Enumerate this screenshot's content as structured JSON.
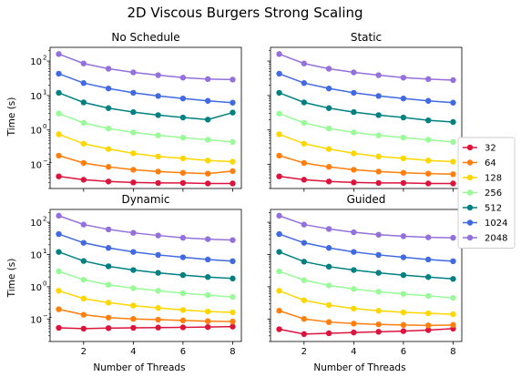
{
  "figure": {
    "title": "2D Viscous Burgers Strong Scaling"
  },
  "chart_data": {
    "type": "line",
    "x": [
      1,
      2,
      3,
      4,
      5,
      6,
      7,
      8
    ],
    "x_ticks": [
      2,
      4,
      6,
      8
    ],
    "x_tick_labels": [
      "2",
      "4",
      "6",
      "8"
    ],
    "xlabel": "Number of Threads",
    "ylabel": "Time (s)",
    "yscale": "log",
    "ylim": [
      0.02,
      250
    ],
    "y_ticks": [
      0.1,
      1,
      10,
      100
    ],
    "y_tick_labels": [
      "10",
      "10",
      "10",
      "10"
    ],
    "y_tick_exponents": [
      "−1",
      "0",
      "1",
      "2"
    ],
    "legend": {
      "placement": "right",
      "entries": [
        "32",
        "64",
        "128",
        "256",
        "512",
        "1024",
        "2048"
      ]
    },
    "series_colors": [
      "#dc143c",
      "#ff7f0e",
      "#ffd700",
      "#98fb98",
      "#008080",
      "#4169e1",
      "#9370db"
    ],
    "panels": [
      {
        "title": "No Schedule",
        "series": [
          {
            "name": "32",
            "values": [
              0.045,
              0.036,
              0.032,
              0.03,
              0.029,
              0.029,
              0.028,
              0.028
            ]
          },
          {
            "name": "64",
            "values": [
              0.18,
              0.11,
              0.085,
              0.07,
              0.062,
              0.057,
              0.054,
              0.064
            ]
          },
          {
            "name": "128",
            "values": [
              0.75,
              0.4,
              0.28,
              0.21,
              0.17,
              0.15,
              0.13,
              0.12
            ]
          },
          {
            "name": "256",
            "values": [
              3.0,
              1.6,
              1.1,
              0.85,
              0.7,
              0.6,
              0.52,
              0.45
            ]
          },
          {
            "name": "512",
            "values": [
              12,
              6.3,
              4.3,
              3.3,
              2.7,
              2.3,
              2.0,
              3.2
            ]
          },
          {
            "name": "1024",
            "values": [
              43,
              23,
              16,
              12,
              9.7,
              8.2,
              7.0,
              6.2
            ]
          },
          {
            "name": "2048",
            "values": [
              160,
              85,
              60,
              47,
              39,
              33,
              30,
              29
            ]
          }
        ]
      },
      {
        "title": "Static",
        "series": [
          {
            "name": "32",
            "values": [
              0.045,
              0.036,
              0.032,
              0.03,
              0.029,
              0.029,
              0.028,
              0.028
            ]
          },
          {
            "name": "64",
            "values": [
              0.18,
              0.11,
              0.085,
              0.07,
              0.062,
              0.057,
              0.054,
              0.052
            ]
          },
          {
            "name": "128",
            "values": [
              0.75,
              0.4,
              0.28,
              0.21,
              0.17,
              0.15,
              0.13,
              0.12
            ]
          },
          {
            "name": "256",
            "values": [
              3.0,
              1.6,
              1.1,
              0.85,
              0.7,
              0.6,
              0.52,
              0.45
            ]
          },
          {
            "name": "512",
            "values": [
              12,
              6.3,
              4.3,
              3.3,
              2.7,
              2.3,
              1.9,
              1.7
            ]
          },
          {
            "name": "1024",
            "values": [
              43,
              23,
              16,
              12,
              9.7,
              8.2,
              7.0,
              6.2
            ]
          },
          {
            "name": "2048",
            "values": [
              160,
              85,
              60,
              47,
              39,
              33,
              30,
              28
            ]
          }
        ]
      },
      {
        "title": "Dynamic",
        "series": [
          {
            "name": "32",
            "values": [
              0.053,
              0.05,
              0.052,
              0.053,
              0.054,
              0.055,
              0.056,
              0.058
            ]
          },
          {
            "name": "64",
            "values": [
              0.2,
              0.135,
              0.11,
              0.1,
              0.095,
              0.09,
              0.085,
              0.083
            ]
          },
          {
            "name": "128",
            "values": [
              0.75,
              0.43,
              0.32,
              0.26,
              0.22,
              0.19,
              0.17,
              0.16
            ]
          },
          {
            "name": "256",
            "values": [
              3.0,
              1.65,
              1.15,
              0.9,
              0.75,
              0.63,
              0.55,
              0.48
            ]
          },
          {
            "name": "512",
            "values": [
              12,
              6.3,
              4.3,
              3.3,
              2.7,
              2.3,
              2.0,
              1.8
            ]
          },
          {
            "name": "1024",
            "values": [
              43,
              23,
              16,
              12,
              9.7,
              8.2,
              7.0,
              6.2
            ]
          },
          {
            "name": "2048",
            "values": [
              160,
              85,
              60,
              47,
              39,
              33,
              30,
              28
            ]
          }
        ]
      },
      {
        "title": "Guided",
        "series": [
          {
            "name": "32",
            "values": [
              0.048,
              0.034,
              0.036,
              0.038,
              0.04,
              0.042,
              0.045,
              0.05
            ]
          },
          {
            "name": "64",
            "values": [
              0.18,
              0.1,
              0.08,
              0.072,
              0.068,
              0.065,
              0.063,
              0.065
            ]
          },
          {
            "name": "128",
            "values": [
              0.75,
              0.38,
              0.27,
              0.21,
              0.18,
              0.16,
              0.15,
              0.14
            ]
          },
          {
            "name": "256",
            "values": [
              3.0,
              1.6,
              1.1,
              0.85,
              0.7,
              0.6,
              0.52,
              0.45
            ]
          },
          {
            "name": "512",
            "values": [
              12,
              6.0,
              4.2,
              3.3,
              2.7,
              2.3,
              2.0,
              1.75
            ]
          },
          {
            "name": "1024",
            "values": [
              43,
              23,
              16,
              12,
              9.7,
              8.2,
              7.0,
              6.2
            ]
          },
          {
            "name": "2048",
            "values": [
              160,
              85,
              62,
              49,
              41,
              37,
              34,
              33
            ]
          }
        ]
      }
    ]
  }
}
